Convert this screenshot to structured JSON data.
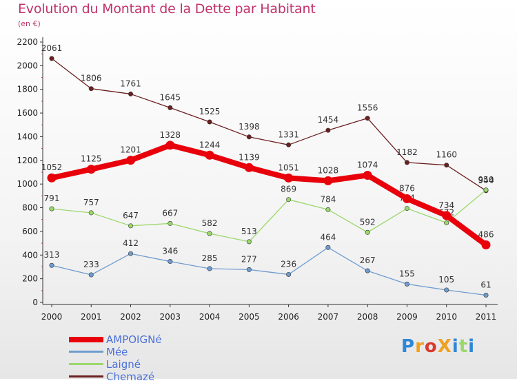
{
  "title": "Evolution du Montant de la Dette par Habitant",
  "unit": "(en €)",
  "logo": "ProXiti",
  "chart_data": {
    "type": "line",
    "x": [
      "2000",
      "2001",
      "2002",
      "2003",
      "2004",
      "2005",
      "2006",
      "2007",
      "2008",
      "2009",
      "2010",
      "2011"
    ],
    "ylim": [
      0,
      2200
    ],
    "yticks": [
      0,
      200,
      400,
      600,
      800,
      1000,
      1200,
      1400,
      1600,
      1800,
      2000,
      2200
    ],
    "grid": false,
    "legend": "bottom-left",
    "series": [
      {
        "name": "AMPOIGNé",
        "color": "#e8000b",
        "values": [
          1052,
          1125,
          1201,
          1328,
          1244,
          1139,
          1051,
          1028,
          1074,
          876,
          734,
          486
        ]
      },
      {
        "name": "Mée",
        "color": "#6f9ccf",
        "values": [
          313,
          233,
          412,
          346,
          285,
          277,
          236,
          464,
          267,
          155,
          105,
          61
        ]
      },
      {
        "name": "Laigné",
        "color": "#9bd86b",
        "values": [
          791,
          757,
          647,
          667,
          582,
          513,
          869,
          784,
          592,
          794,
          672,
          950
        ]
      },
      {
        "name": "Chemazé",
        "color": "#6b1f1f",
        "values": [
          2061,
          1806,
          1761,
          1645,
          1525,
          1398,
          1331,
          1454,
          1556,
          1182,
          1160,
          944
        ]
      }
    ]
  }
}
